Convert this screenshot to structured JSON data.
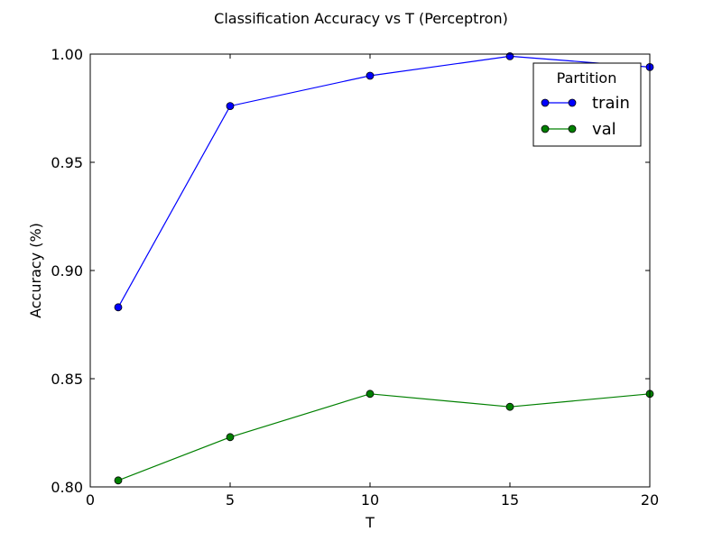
{
  "chart_data": {
    "type": "line",
    "title": "Classification Accuracy vs T (Perceptron)",
    "xlabel": "T",
    "ylabel": "Accuracy (%)",
    "xlim": [
      0,
      20
    ],
    "ylim": [
      0.8,
      1.0
    ],
    "x_ticks": [
      0,
      5,
      10,
      15,
      20
    ],
    "x_tick_labels": [
      "0",
      "5",
      "10",
      "15",
      "20"
    ],
    "y_ticks": [
      0.8,
      0.85,
      0.9,
      0.95,
      1.0
    ],
    "y_tick_labels": [
      "0.80",
      "0.85",
      "0.90",
      "0.95",
      "1.00"
    ],
    "grid": false,
    "x": [
      1,
      5,
      10,
      15,
      20
    ],
    "series": [
      {
        "name": "train",
        "color": "#0000ff",
        "marker": "circle",
        "values": [
          0.883,
          0.976,
          0.99,
          0.999,
          0.994
        ]
      },
      {
        "name": "val",
        "color": "#008000",
        "marker": "circle",
        "values": [
          0.803,
          0.823,
          0.843,
          0.837,
          0.843
        ]
      }
    ],
    "legend": {
      "title": "Partition",
      "position": "top-right"
    }
  }
}
